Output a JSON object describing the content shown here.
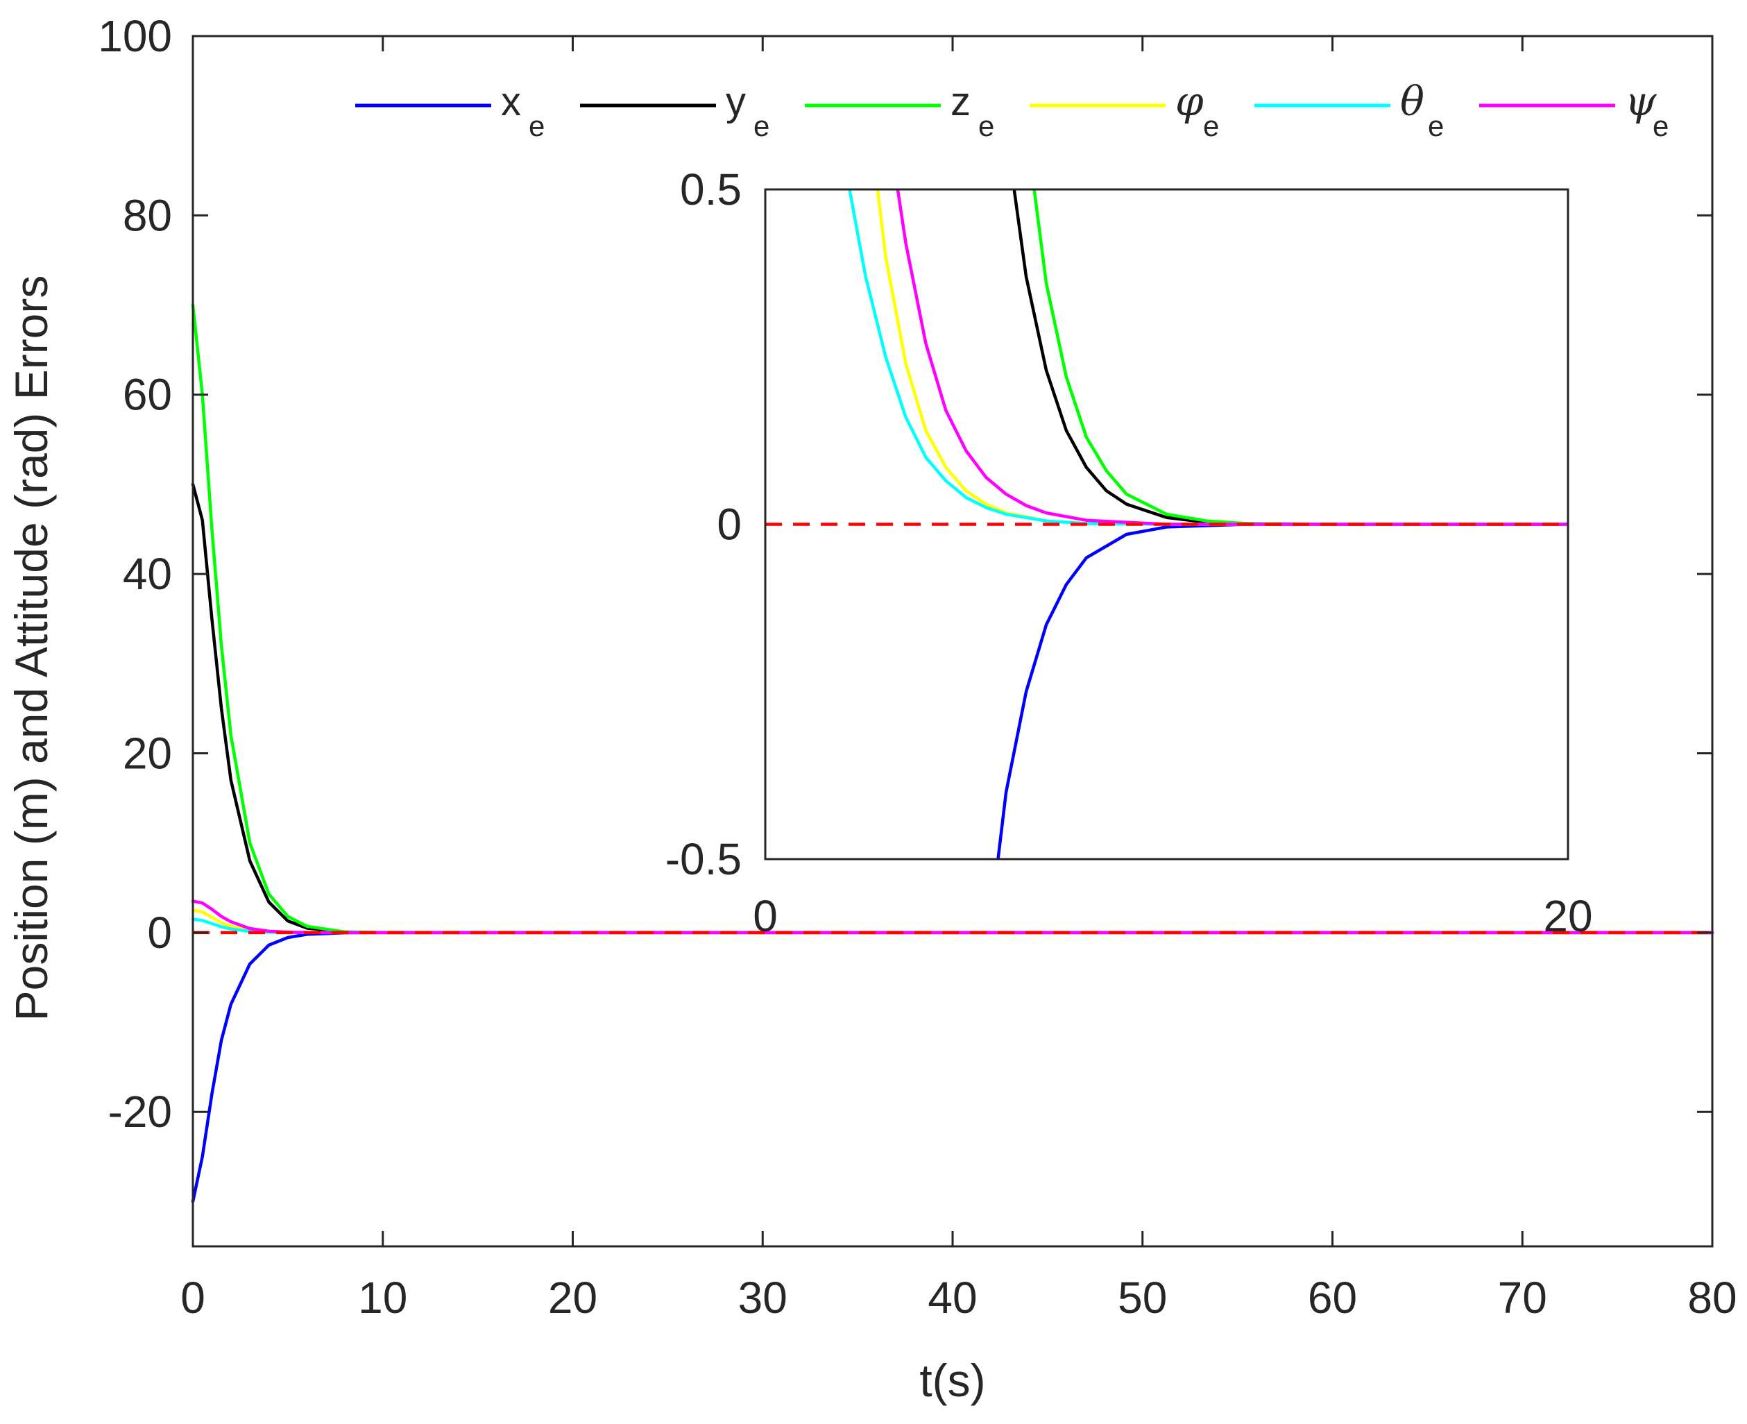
{
  "chart_data": [
    {
      "type": "line",
      "xlabel": "t(s)",
      "ylabel": "Position (m) and Attitude (rad) Errors",
      "xlim": [
        0,
        80
      ],
      "ylim": [
        -35,
        100
      ],
      "x_ticks": [
        "0",
        "10",
        "20",
        "30",
        "40",
        "50",
        "60",
        "70",
        "80"
      ],
      "y_ticks": [
        "-20",
        "0",
        "20",
        "40",
        "60",
        "80",
        "100"
      ],
      "grid": false,
      "legend_position": "top, horizontal",
      "series": [
        {
          "name": "x",
          "subscript": "e",
          "color": "#0000ff",
          "initial": -30,
          "x": [
            0,
            0.5,
            1,
            1.5,
            2,
            3,
            4,
            5,
            6,
            8,
            10,
            80
          ],
          "y": [
            -30,
            -25,
            -18,
            -12,
            -8,
            -3.5,
            -1.4,
            -0.55,
            -0.2,
            -0.03,
            0,
            0
          ]
        },
        {
          "name": "y",
          "subscript": "e",
          "color": "#000000",
          "initial": 50,
          "x": [
            0,
            0.5,
            1,
            1.5,
            2,
            3,
            4,
            5,
            6,
            8,
            10,
            80
          ],
          "y": [
            50,
            46,
            35,
            25,
            17,
            8,
            3.4,
            1.3,
            0.5,
            0.05,
            0,
            0
          ]
        },
        {
          "name": "z",
          "subscript": "e",
          "color": "#00ff00",
          "initial": 70,
          "x": [
            0,
            0.5,
            1,
            1.5,
            2,
            3,
            4,
            5,
            6,
            8,
            10,
            80
          ],
          "y": [
            70,
            60,
            45,
            32,
            22,
            10,
            4.3,
            1.8,
            0.7,
            0.08,
            0,
            0
          ]
        },
        {
          "name": "φ",
          "subscript": "e",
          "color": "#ffff00",
          "initial": 2.5,
          "x": [
            0,
            0.5,
            1,
            1.5,
            2,
            3,
            4,
            5,
            6,
            8,
            10,
            80
          ],
          "y": [
            2.5,
            2.3,
            1.7,
            1.1,
            0.7,
            0.25,
            0.08,
            0.02,
            0.005,
            0,
            0,
            0
          ]
        },
        {
          "name": "θ",
          "subscript": "e",
          "color": "#00ffff",
          "initial": 1.5,
          "x": [
            0,
            0.5,
            1,
            1.5,
            2,
            3,
            4,
            5,
            6,
            8,
            10,
            80
          ],
          "y": [
            1.5,
            1.35,
            1.0,
            0.65,
            0.4,
            0.14,
            0.045,
            0.012,
            0.003,
            0,
            0,
            0
          ]
        },
        {
          "name": "ψ",
          "subscript": "e",
          "color": "#ff00ff",
          "initial": 3.5,
          "x": [
            0,
            0.5,
            1,
            1.5,
            2,
            3,
            4,
            5,
            6,
            8,
            10,
            80
          ],
          "y": [
            3.5,
            3.3,
            2.6,
            1.8,
            1.2,
            0.45,
            0.15,
            0.045,
            0.012,
            0,
            0,
            0
          ]
        },
        {
          "name": "",
          "color": "#ff0000",
          "style": "dashed",
          "x": [
            0,
            80
          ],
          "y": [
            0,
            0
          ]
        }
      ]
    },
    {
      "type": "line",
      "role": "inset",
      "xlim": [
        0,
        20
      ],
      "ylim": [
        -0.5,
        0.5
      ],
      "x_ticks": [
        "0",
        "20"
      ],
      "y_ticks": [
        "-0.5",
        "0",
        "0.5"
      ],
      "series": [
        {
          "name": "x",
          "subscript": "e",
          "color": "#0000ff",
          "x": [
            5.8,
            6,
            6.5,
            7,
            7.5,
            8,
            9,
            10,
            12,
            14,
            20
          ],
          "y": [
            -0.5,
            -0.4,
            -0.25,
            -0.15,
            -0.09,
            -0.05,
            -0.015,
            -0.004,
            0,
            0,
            0
          ]
        },
        {
          "name": "y",
          "subscript": "e",
          "color": "#000000",
          "x": [
            6.2,
            6.5,
            7,
            7.5,
            8,
            8.5,
            9,
            10,
            11,
            12,
            14,
            20
          ],
          "y": [
            0.5,
            0.37,
            0.23,
            0.14,
            0.085,
            0.05,
            0.03,
            0.01,
            0.003,
            0.001,
            0,
            0
          ]
        },
        {
          "name": "z",
          "subscript": "e",
          "color": "#00ff00",
          "x": [
            6.7,
            7,
            7.5,
            8,
            8.5,
            9,
            10,
            11,
            12,
            14,
            20
          ],
          "y": [
            0.5,
            0.36,
            0.22,
            0.13,
            0.08,
            0.045,
            0.015,
            0.005,
            0.001,
            0,
            0
          ]
        },
        {
          "name": "φ",
          "subscript": "e",
          "color": "#ffff00",
          "x": [
            2.8,
            3,
            3.5,
            4,
            4.5,
            5,
            5.5,
            6,
            7,
            8,
            10,
            20
          ],
          "y": [
            0.5,
            0.4,
            0.24,
            0.14,
            0.085,
            0.05,
            0.03,
            0.017,
            0.005,
            0.001,
            0,
            0
          ]
        },
        {
          "name": "θ",
          "subscript": "e",
          "color": "#00ffff",
          "x": [
            2.1,
            2.5,
            3,
            3.5,
            4,
            4.5,
            5,
            5.5,
            6,
            7,
            8,
            10,
            20
          ],
          "y": [
            0.5,
            0.37,
            0.25,
            0.16,
            0.1,
            0.065,
            0.04,
            0.025,
            0.015,
            0.005,
            0.001,
            0,
            0
          ]
        },
        {
          "name": "ψ",
          "subscript": "e",
          "color": "#ff00ff",
          "x": [
            3.3,
            3.5,
            4,
            4.5,
            5,
            5.5,
            6,
            6.5,
            7,
            8,
            10,
            20
          ],
          "y": [
            0.5,
            0.42,
            0.27,
            0.17,
            0.11,
            0.07,
            0.045,
            0.028,
            0.017,
            0.006,
            0,
            0
          ]
        },
        {
          "name": "",
          "color": "#ff0000",
          "style": "dashed",
          "x": [
            0,
            20
          ],
          "y": [
            0,
            0
          ]
        }
      ]
    }
  ]
}
